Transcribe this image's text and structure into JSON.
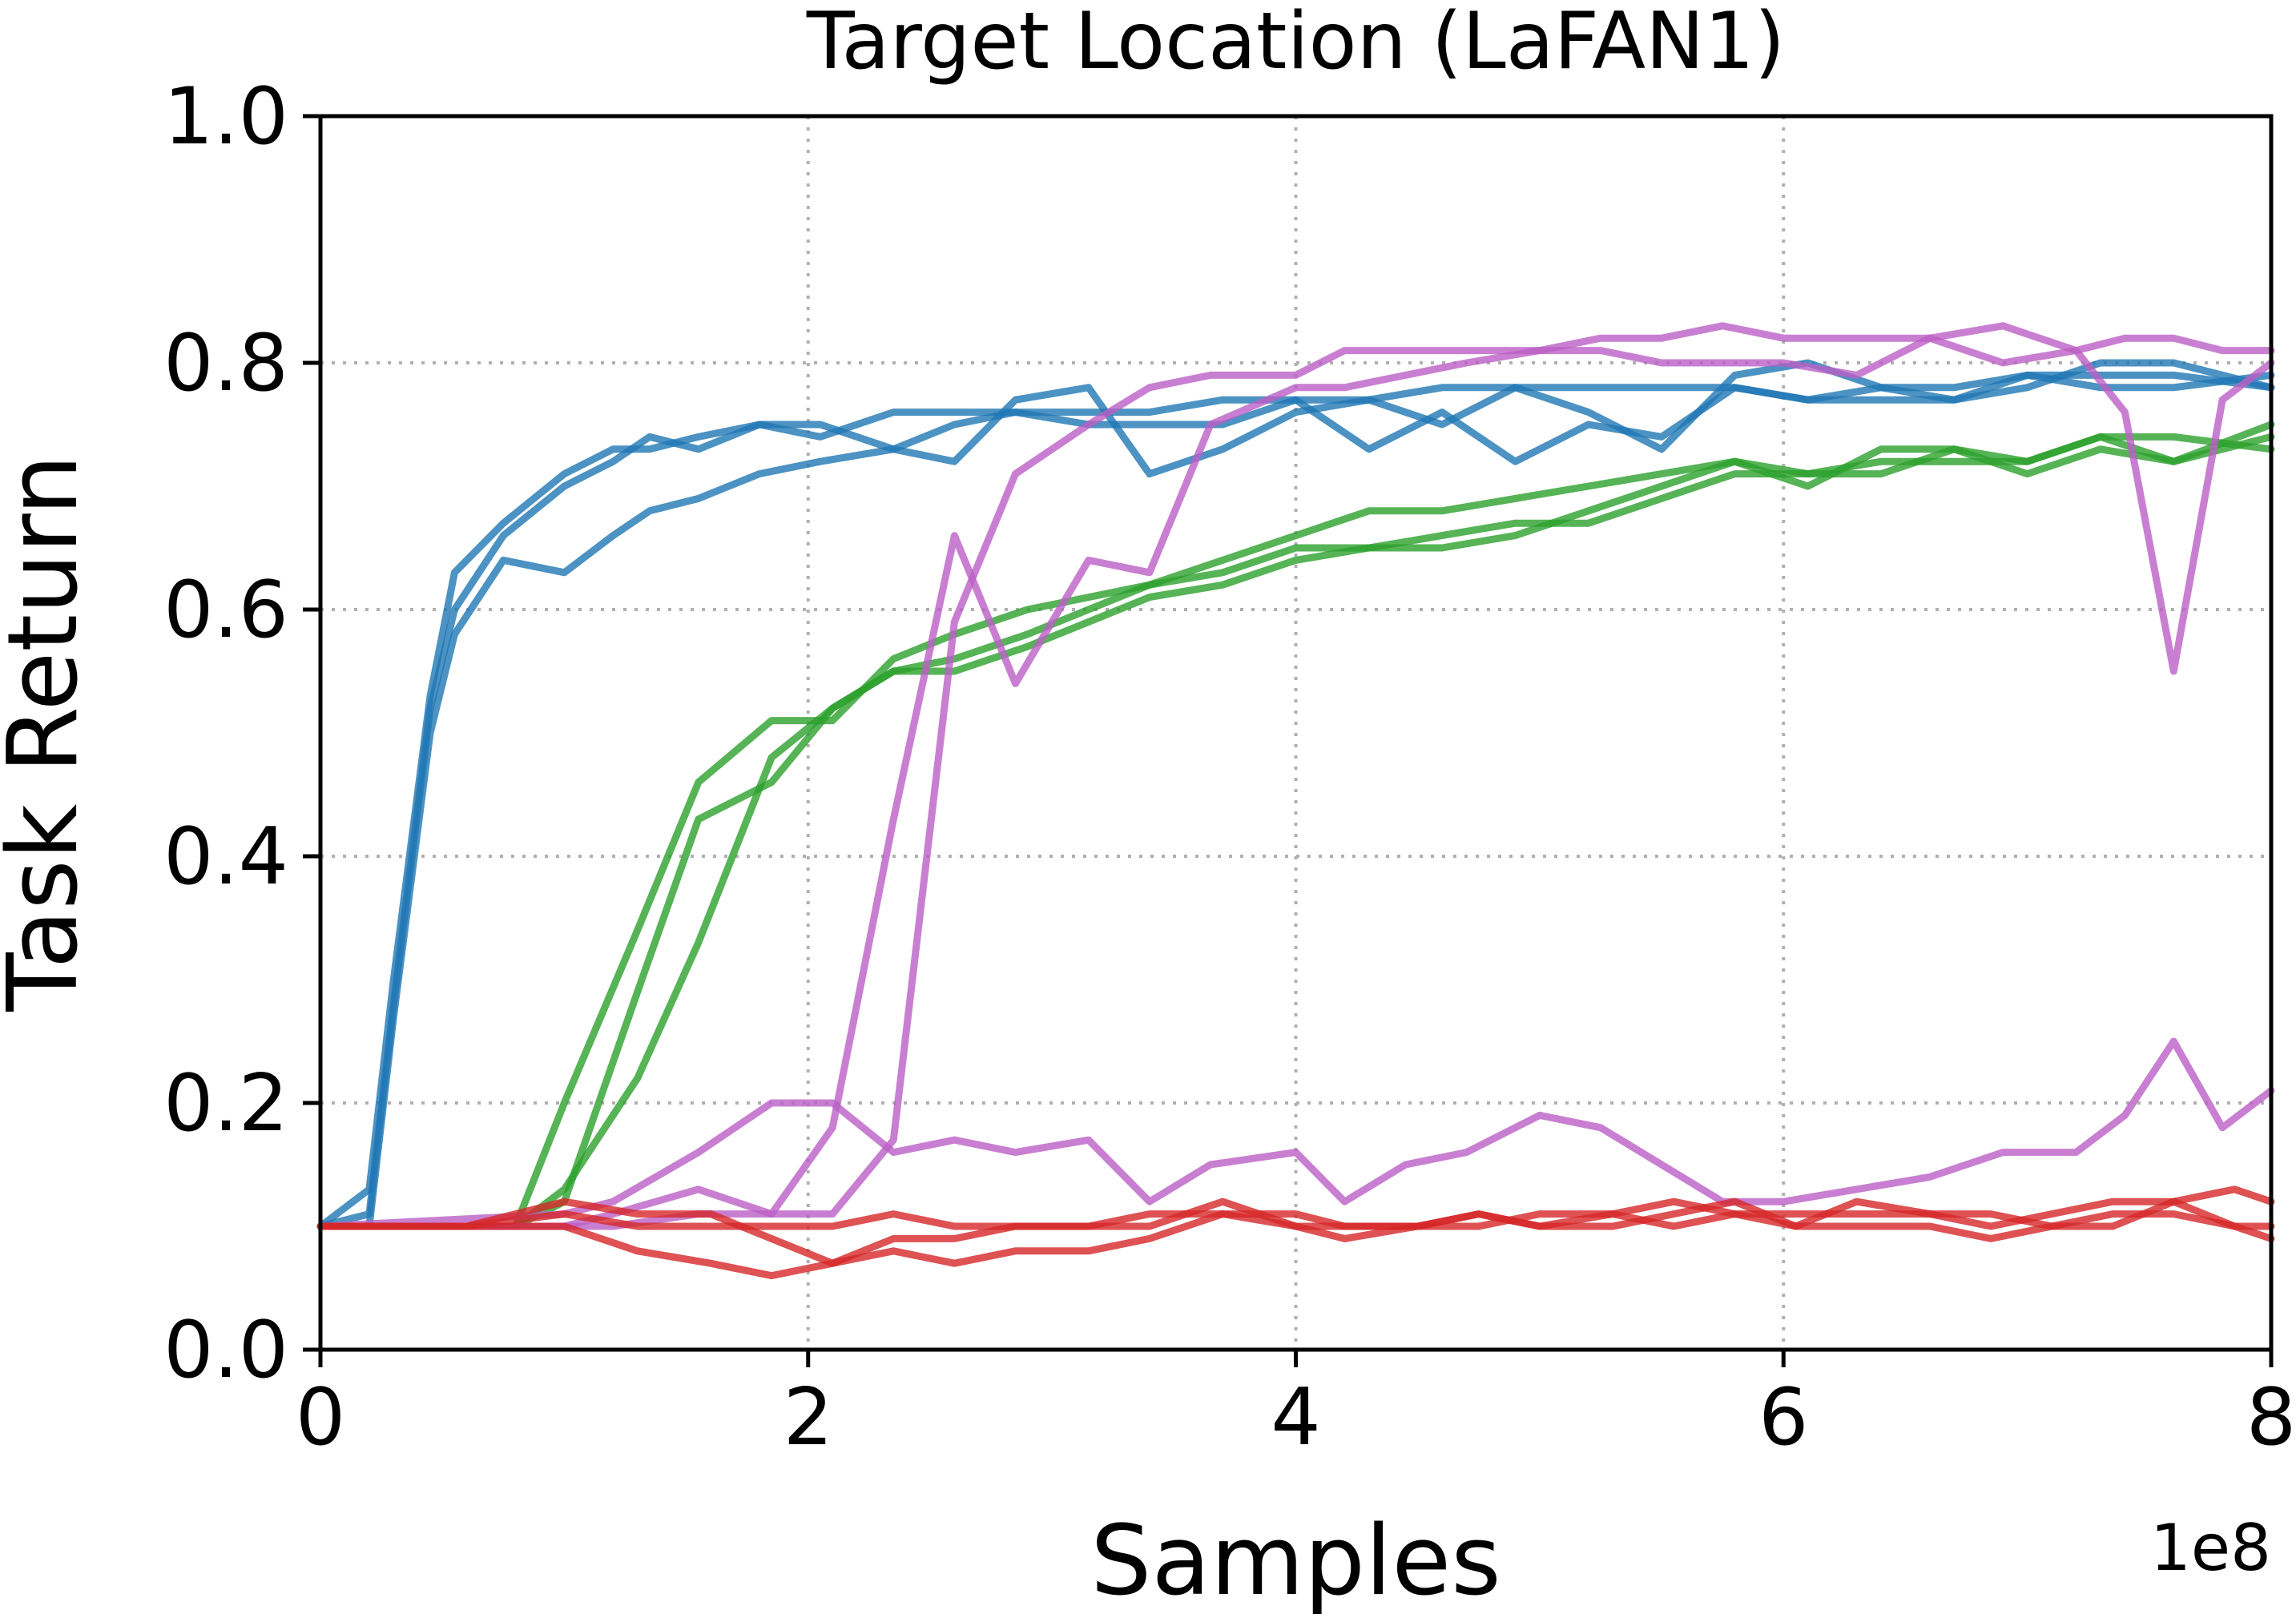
{
  "chart_data": {
    "type": "line",
    "title": "Target Location (LaFAN1)",
    "xlabel": "Samples",
    "ylabel": "Task Return",
    "x_multiplier_label": "1e8",
    "xlim": [
      0,
      8
    ],
    "ylim": [
      0,
      1
    ],
    "xticks": [
      0,
      2,
      4,
      6,
      8
    ],
    "xtick_labels": [
      "0",
      "2",
      "4",
      "6",
      "8"
    ],
    "yticks": [
      0,
      0.2,
      0.4,
      0.6,
      0.8,
      1.0
    ],
    "ytick_labels": [
      "0.0",
      "0.2",
      "0.4",
      "0.6",
      "0.8",
      "1.0"
    ],
    "grid": true,
    "legend": false,
    "series": [
      {
        "color": "#1f77b4",
        "x": [
          0,
          0.2,
          0.3,
          0.45,
          0.55,
          0.75,
          1.0,
          1.2,
          1.35,
          1.55,
          1.8,
          2.05,
          2.35,
          2.6,
          2.85,
          3.15,
          3.4,
          3.7,
          4.0,
          4.3,
          4.6,
          4.9,
          5.2,
          5.5,
          5.8,
          6.1,
          6.4,
          6.7,
          7.0,
          7.3,
          7.6,
          8.0
        ],
        "y": [
          0.1,
          0.13,
          0.3,
          0.53,
          0.63,
          0.67,
          0.71,
          0.73,
          0.73,
          0.74,
          0.75,
          0.75,
          0.73,
          0.72,
          0.77,
          0.78,
          0.71,
          0.73,
          0.76,
          0.77,
          0.75,
          0.78,
          0.76,
          0.73,
          0.79,
          0.8,
          0.78,
          0.78,
          0.79,
          0.78,
          0.78,
          0.79
        ]
      },
      {
        "color": "#1f77b4",
        "x": [
          0,
          0.2,
          0.3,
          0.45,
          0.55,
          0.75,
          1.0,
          1.2,
          1.35,
          1.55,
          1.8,
          2.05,
          2.35,
          2.6,
          2.85,
          3.15,
          3.4,
          3.7,
          4.0,
          4.3,
          4.6,
          4.9,
          5.2,
          5.5,
          5.8,
          6.1,
          6.4,
          6.7,
          7.0,
          7.3,
          7.6,
          8.0
        ],
        "y": [
          0.1,
          0.11,
          0.28,
          0.52,
          0.6,
          0.66,
          0.7,
          0.72,
          0.74,
          0.73,
          0.75,
          0.74,
          0.76,
          0.76,
          0.76,
          0.75,
          0.75,
          0.75,
          0.77,
          0.73,
          0.76,
          0.72,
          0.75,
          0.74,
          0.78,
          0.77,
          0.77,
          0.77,
          0.79,
          0.79,
          0.79,
          0.78
        ]
      },
      {
        "color": "#1f77b4",
        "x": [
          0,
          0.2,
          0.3,
          0.45,
          0.55,
          0.75,
          1.0,
          1.2,
          1.35,
          1.55,
          1.8,
          2.05,
          2.35,
          2.6,
          2.85,
          3.15,
          3.4,
          3.7,
          4.0,
          4.3,
          4.6,
          4.9,
          5.2,
          5.5,
          5.8,
          6.1,
          6.4,
          6.7,
          7.0,
          7.3,
          7.6,
          8.0
        ],
        "y": [
          0.1,
          0.1,
          0.27,
          0.5,
          0.58,
          0.64,
          0.63,
          0.66,
          0.68,
          0.69,
          0.71,
          0.72,
          0.73,
          0.75,
          0.76,
          0.76,
          0.76,
          0.77,
          0.77,
          0.77,
          0.78,
          0.78,
          0.78,
          0.78,
          0.78,
          0.77,
          0.78,
          0.77,
          0.78,
          0.8,
          0.8,
          0.78
        ]
      },
      {
        "color": "#2ca02c",
        "x": [
          0,
          0.8,
          1.0,
          1.3,
          1.55,
          1.85,
          2.1,
          2.35,
          2.6,
          2.9,
          3.15,
          3.4,
          3.7,
          4.0,
          4.3,
          4.6,
          4.9,
          5.2,
          5.5,
          5.8,
          6.1,
          6.4,
          6.7,
          7.0,
          7.3,
          7.6,
          8.0
        ],
        "y": [
          0.1,
          0.1,
          0.2,
          0.34,
          0.46,
          0.51,
          0.51,
          0.56,
          0.58,
          0.6,
          0.61,
          0.62,
          0.64,
          0.66,
          0.68,
          0.68,
          0.69,
          0.7,
          0.71,
          0.72,
          0.7,
          0.73,
          0.73,
          0.72,
          0.74,
          0.74,
          0.73
        ]
      },
      {
        "color": "#2ca02c",
        "x": [
          0,
          0.8,
          1.0,
          1.3,
          1.55,
          1.85,
          2.1,
          2.35,
          2.6,
          2.9,
          3.15,
          3.4,
          3.7,
          4.0,
          4.3,
          4.6,
          4.9,
          5.2,
          5.5,
          5.8,
          6.1,
          6.4,
          6.7,
          7.0,
          7.3,
          7.6,
          8.0
        ],
        "y": [
          0.1,
          0.1,
          0.12,
          0.29,
          0.43,
          0.46,
          0.52,
          0.55,
          0.56,
          0.58,
          0.6,
          0.62,
          0.63,
          0.65,
          0.65,
          0.65,
          0.66,
          0.68,
          0.7,
          0.72,
          0.71,
          0.72,
          0.72,
          0.72,
          0.74,
          0.72,
          0.75
        ]
      },
      {
        "color": "#2ca02c",
        "x": [
          0,
          0.8,
          1.0,
          1.3,
          1.55,
          1.85,
          2.1,
          2.35,
          2.6,
          2.9,
          3.15,
          3.4,
          3.7,
          4.0,
          4.3,
          4.6,
          4.9,
          5.2,
          5.5,
          5.8,
          6.1,
          6.4,
          6.7,
          7.0,
          7.3,
          7.6,
          8.0
        ],
        "y": [
          0.1,
          0.1,
          0.13,
          0.22,
          0.33,
          0.48,
          0.52,
          0.55,
          0.55,
          0.57,
          0.59,
          0.61,
          0.62,
          0.64,
          0.65,
          0.66,
          0.67,
          0.67,
          0.69,
          0.71,
          0.71,
          0.71,
          0.73,
          0.71,
          0.73,
          0.72,
          0.74
        ]
      },
      {
        "color": "#bc5fc6",
        "x": [
          0,
          1.0,
          1.2,
          1.55,
          1.85,
          2.1,
          2.35,
          2.6,
          2.85,
          3.15,
          3.4,
          3.65,
          4.0,
          4.2,
          4.45,
          4.7,
          5.0,
          5.25,
          5.5,
          5.75,
          6.0,
          6.3,
          6.6,
          6.9,
          7.2,
          7.4,
          7.6,
          7.8,
          8.0
        ],
        "y": [
          0.1,
          0.1,
          0.11,
          0.13,
          0.11,
          0.18,
          0.43,
          0.66,
          0.54,
          0.64,
          0.63,
          0.75,
          0.78,
          0.78,
          0.79,
          0.8,
          0.81,
          0.81,
          0.8,
          0.8,
          0.8,
          0.79,
          0.82,
          0.8,
          0.81,
          0.76,
          0.55,
          0.77,
          0.8
        ]
      },
      {
        "color": "#bc5fc6",
        "x": [
          0,
          1.0,
          1.2,
          1.55,
          1.85,
          2.1,
          2.35,
          2.6,
          2.85,
          3.15,
          3.4,
          3.65,
          4.0,
          4.2,
          4.45,
          4.7,
          5.0,
          5.25,
          5.5,
          5.75,
          6.0,
          6.3,
          6.6,
          6.9,
          7.2,
          7.4,
          7.6,
          7.8,
          8.0
        ],
        "y": [
          0.1,
          0.1,
          0.1,
          0.11,
          0.11,
          0.11,
          0.17,
          0.59,
          0.71,
          0.75,
          0.78,
          0.79,
          0.79,
          0.81,
          0.81,
          0.81,
          0.81,
          0.82,
          0.82,
          0.83,
          0.82,
          0.82,
          0.82,
          0.83,
          0.81,
          0.82,
          0.82,
          0.81,
          0.81
        ]
      },
      {
        "color": "#bc5fc6",
        "x": [
          0,
          1.0,
          1.2,
          1.55,
          1.85,
          2.1,
          2.35,
          2.6,
          2.85,
          3.15,
          3.4,
          3.65,
          4.0,
          4.2,
          4.45,
          4.7,
          5.0,
          5.25,
          5.5,
          5.75,
          6.0,
          6.3,
          6.6,
          6.9,
          7.2,
          7.4,
          7.6,
          7.8,
          8.0
        ],
        "y": [
          0.1,
          0.11,
          0.12,
          0.16,
          0.2,
          0.2,
          0.16,
          0.17,
          0.16,
          0.17,
          0.12,
          0.15,
          0.16,
          0.12,
          0.15,
          0.16,
          0.19,
          0.18,
          0.15,
          0.12,
          0.12,
          0.13,
          0.14,
          0.16,
          0.16,
          0.19,
          0.25,
          0.18,
          0.21
        ]
      },
      {
        "color": "#d62728",
        "x": [
          0,
          0.6,
          1.0,
          1.3,
          1.6,
          1.85,
          2.1,
          2.35,
          2.6,
          2.85,
          3.15,
          3.4,
          3.7,
          4.0,
          4.2,
          4.5,
          4.75,
          5.0,
          5.3,
          5.55,
          5.8,
          6.05,
          6.3,
          6.6,
          6.85,
          7.1,
          7.35,
          7.6,
          7.85,
          8.0
        ],
        "y": [
          0.1,
          0.1,
          0.11,
          0.1,
          0.1,
          0.1,
          0.1,
          0.11,
          0.1,
          0.1,
          0.1,
          0.11,
          0.11,
          0.11,
          0.1,
          0.1,
          0.11,
          0.1,
          0.11,
          0.12,
          0.11,
          0.11,
          0.11,
          0.11,
          0.1,
          0.11,
          0.12,
          0.12,
          0.13,
          0.12
        ]
      },
      {
        "color": "#d62728",
        "x": [
          0,
          0.6,
          1.0,
          1.3,
          1.6,
          1.85,
          2.1,
          2.35,
          2.6,
          2.85,
          3.15,
          3.4,
          3.7,
          4.0,
          4.2,
          4.5,
          4.75,
          5.0,
          5.3,
          5.55,
          5.8,
          6.05,
          6.3,
          6.6,
          6.85,
          7.1,
          7.35,
          7.6,
          7.85,
          8.0
        ],
        "y": [
          0.1,
          0.1,
          0.12,
          0.11,
          0.11,
          0.09,
          0.07,
          0.09,
          0.09,
          0.1,
          0.1,
          0.1,
          0.12,
          0.1,
          0.09,
          0.1,
          0.11,
          0.1,
          0.1,
          0.11,
          0.12,
          0.1,
          0.12,
          0.11,
          0.11,
          0.1,
          0.11,
          0.11,
          0.1,
          0.1
        ]
      },
      {
        "color": "#d62728",
        "x": [
          0,
          0.6,
          1.0,
          1.3,
          1.6,
          1.85,
          2.1,
          2.35,
          2.6,
          2.85,
          3.15,
          3.4,
          3.7,
          4.0,
          4.2,
          4.5,
          4.75,
          5.0,
          5.3,
          5.55,
          5.8,
          6.05,
          6.3,
          6.6,
          6.85,
          7.1,
          7.35,
          7.6,
          7.85,
          8.0
        ],
        "y": [
          0.1,
          0.1,
          0.1,
          0.08,
          0.07,
          0.06,
          0.07,
          0.08,
          0.07,
          0.08,
          0.08,
          0.09,
          0.11,
          0.1,
          0.1,
          0.1,
          0.1,
          0.11,
          0.11,
          0.1,
          0.11,
          0.1,
          0.1,
          0.1,
          0.09,
          0.1,
          0.1,
          0.12,
          0.1,
          0.09
        ]
      }
    ]
  }
}
